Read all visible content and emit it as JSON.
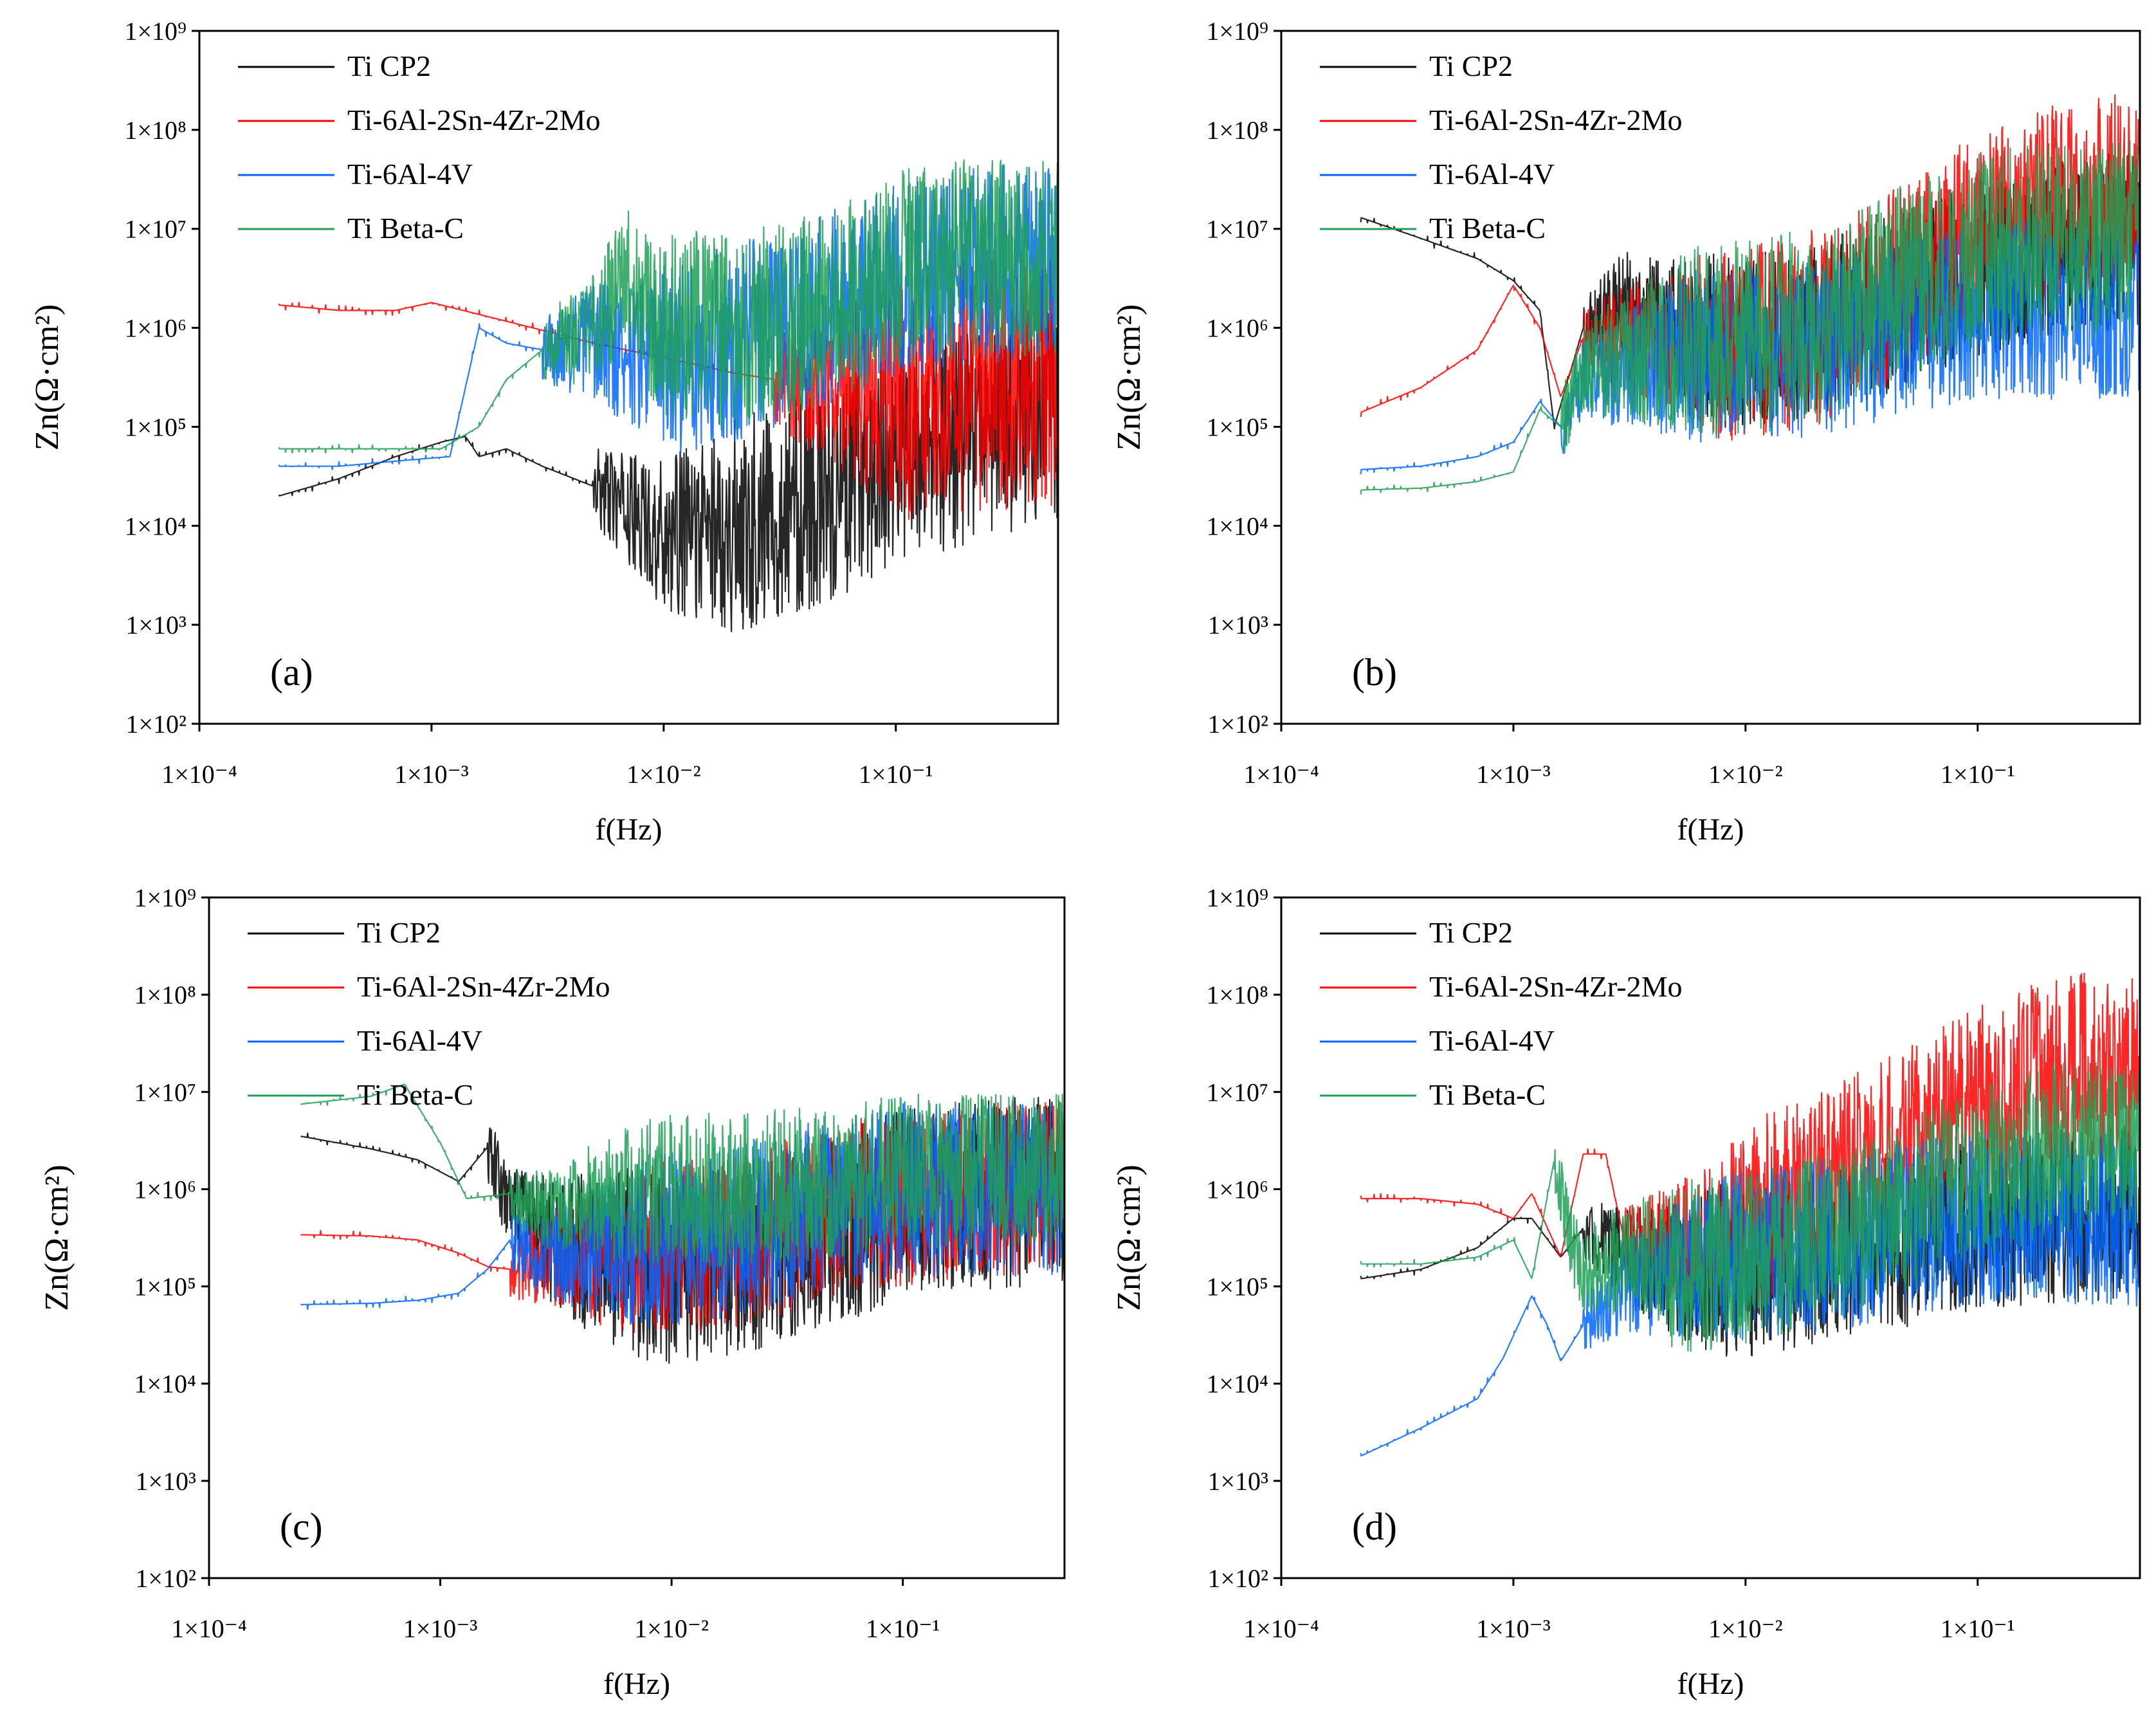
{
  "figure": {
    "description": "Electrochemical noise impedance spectra (Zn vs frequency), four panels",
    "series_colors": {
      "Ti CP2": "#000000",
      "Ti-6Al-2Sn-4Zr-2Mo": "#ff0000",
      "Ti-6Al-4V": "#0066ff",
      "Ti Beta-C": "#1fa056"
    }
  },
  "chart_data": [
    {
      "type": "line",
      "panel": "(a)",
      "title": "",
      "xlabel": "f(Hz)",
      "ylabel": "Zn(Ω·cm²)",
      "xscale": "log",
      "yscale": "log",
      "xlim": [
        0.0001,
        0.5
      ],
      "ylim": [
        100,
        1000000000
      ],
      "x_tick_labels": [
        "1×10⁻⁴",
        "1×10⁻³",
        "1×10⁻²",
        "1×10⁻¹"
      ],
      "y_tick_labels": [
        "1×10²",
        "1×10³",
        "1×10⁴",
        "1×10⁵",
        "1×10⁶",
        "1×10⁷",
        "1×10⁸",
        "1×10⁹"
      ],
      "legend": [
        "Ti CP2",
        "Ti-6Al-2Sn-4Zr-2Mo",
        "Ti-6Al-4V",
        "Ti Beta-C"
      ],
      "legend_position": "top-left",
      "series": [
        {
          "name": "Ti CP2",
          "color": "#000000",
          "x": [
            0.00022,
            0.0004,
            0.0007,
            0.0011,
            0.0014,
            0.0016,
            0.0021,
            0.003,
            0.005,
            0.007,
            0.01,
            0.02,
            0.05,
            0.1,
            0.2,
            0.5
          ],
          "y": [
            20000,
            30000,
            50000,
            70000,
            80000,
            50000,
            60000,
            40000,
            25000,
            15000,
            8000,
            10000,
            20000,
            50000,
            80000,
            150000
          ],
          "noise_start": 0.005,
          "noise_amp": 1.1
        },
        {
          "name": "Ti-6Al-2Sn-4Zr-2Mo",
          "color": "#ff0000",
          "x": [
            0.00022,
            0.0004,
            0.0007,
            0.001,
            0.002,
            0.005,
            0.01,
            0.02,
            0.05,
            0.1,
            0.2,
            0.5
          ],
          "y": [
            1700000,
            1500000,
            1500000,
            1800000,
            1200000,
            700000,
            500000,
            350000,
            250000,
            200000,
            250000,
            300000
          ],
          "noise_start": 0.03,
          "noise_amp": 1.3
        },
        {
          "name": "Ti-6Al-4V",
          "color": "#0066ff",
          "x": [
            0.00022,
            0.0004,
            0.0007,
            0.0012,
            0.0016,
            0.0021,
            0.003,
            0.005,
            0.01,
            0.02,
            0.05,
            0.1,
            0.2,
            0.5
          ],
          "y": [
            40000,
            40000,
            45000,
            50000,
            1000000,
            700000,
            600000,
            700000,
            500000,
            700000,
            1500000,
            3000000,
            4000000,
            5000000
          ],
          "noise_start": 0.003,
          "noise_amp": 1.0
        },
        {
          "name": "Ti Beta-C",
          "color": "#1fa056",
          "x": [
            0.00022,
            0.0004,
            0.0007,
            0.0011,
            0.0016,
            0.0021,
            0.003,
            0.005,
            0.007,
            0.01,
            0.02,
            0.05,
            0.1,
            0.2,
            0.5
          ],
          "y": [
            60000,
            60000,
            60000,
            60000,
            100000,
            300000,
            600000,
            1000000,
            3000000,
            1000000,
            900000,
            1500000,
            4000000,
            5000000,
            5000000
          ],
          "noise_start": 0.003,
          "noise_amp": 1.0
        }
      ]
    },
    {
      "type": "line",
      "panel": "(b)",
      "title": "",
      "xlabel": "f(Hz)",
      "ylabel": "Zn(Ω·cm²)",
      "xscale": "log",
      "yscale": "log",
      "xlim": [
        0.0001,
        0.5
      ],
      "ylim": [
        100,
        1000000000
      ],
      "x_tick_labels": [
        "1×10⁻⁴",
        "1×10⁻³",
        "1×10⁻²",
        "1×10⁻¹"
      ],
      "y_tick_labels": [
        "1×10²",
        "1×10³",
        "1×10⁴",
        "1×10⁵",
        "1×10⁶",
        "1×10⁷",
        "1×10⁸",
        "1×10⁹"
      ],
      "legend": [
        "Ti CP2",
        "Ti-6Al-2Sn-4Zr-2Mo",
        "Ti-6Al-4V",
        "Ti Beta-C"
      ],
      "legend_position": "top-left",
      "series": [
        {
          "name": "Ti CP2",
          "color": "#000000",
          "x": [
            0.00022,
            0.0004,
            0.0007,
            0.001,
            0.0013,
            0.0015,
            0.002,
            0.003,
            0.005,
            0.01,
            0.02,
            0.05,
            0.1,
            0.2,
            0.5
          ],
          "y": [
            13000000,
            8000000,
            5000000,
            3000000,
            1500000,
            100000,
            1000000,
            2000000,
            1000000,
            700000,
            1000000,
            2000000,
            4000000,
            6000000,
            8000000
          ],
          "noise_start": 0.002,
          "noise_amp": 0.9
        },
        {
          "name": "Ti-6Al-2Sn-4Zr-2Mo",
          "color": "#ff0000",
          "x": [
            0.00022,
            0.0004,
            0.0007,
            0.001,
            0.0013,
            0.0016,
            0.002,
            0.005,
            0.01,
            0.02,
            0.05,
            0.1,
            0.2,
            0.5
          ],
          "y": [
            140000,
            250000,
            600000,
            2700000,
            1000000,
            200000,
            800000,
            700000,
            700000,
            1000000,
            3000000,
            10000000,
            20000000,
            30000000
          ],
          "noise_start": 0.002,
          "noise_amp": 1.0
        },
        {
          "name": "Ti-6Al-4V",
          "color": "#0066ff",
          "x": [
            0.00022,
            0.0004,
            0.0007,
            0.001,
            0.0013,
            0.0016,
            0.002,
            0.005,
            0.01,
            0.02,
            0.05,
            0.1,
            0.2,
            0.5
          ],
          "y": [
            37000,
            40000,
            50000,
            70000,
            180000,
            100000,
            300000,
            500000,
            500000,
            600000,
            1000000,
            1500000,
            1500000,
            1500000
          ],
          "noise_start": 0.0016,
          "noise_amp": 0.9
        },
        {
          "name": "Ti Beta-C",
          "color": "#1fa056",
          "x": [
            0.00022,
            0.0004,
            0.0007,
            0.001,
            0.0013,
            0.0016,
            0.002,
            0.005,
            0.01,
            0.02,
            0.05,
            0.1,
            0.2,
            0.5
          ],
          "y": [
            23000,
            24000,
            28000,
            35000,
            150000,
            100000,
            400000,
            700000,
            800000,
            1000000,
            3000000,
            6000000,
            8000000,
            8000000
          ],
          "noise_start": 0.0016,
          "noise_amp": 1.0
        }
      ]
    },
    {
      "type": "line",
      "panel": "(c)",
      "title": "",
      "xlabel": "f(Hz)",
      "ylabel": "Zn(Ω·cm²)",
      "xscale": "log",
      "yscale": "log",
      "xlim": [
        0.0001,
        0.5
      ],
      "ylim": [
        100,
        1000000000
      ],
      "x_tick_labels": [
        "1×10⁻⁴",
        "1×10⁻³",
        "1×10⁻²",
        "1×10⁻¹"
      ],
      "y_tick_labels": [
        "1×10²",
        "1×10³",
        "1×10⁴",
        "1×10⁵",
        "1×10⁶",
        "1×10⁷",
        "1×10⁸",
        "1×10⁹"
      ],
      "legend": [
        "Ti CP2",
        "Ti-6Al-2Sn-4Zr-2Mo",
        "Ti-6Al-4V",
        "Ti Beta-C"
      ],
      "legend_position": "top-left",
      "series": [
        {
          "name": "Ti CP2",
          "color": "#000000",
          "x": [
            0.00025,
            0.0005,
            0.0008,
            0.0012,
            0.0016,
            0.002,
            0.003,
            0.005,
            0.01,
            0.02,
            0.05,
            0.1,
            0.2,
            0.5
          ],
          "y": [
            3500000,
            2600000,
            2000000,
            1200000,
            2700000,
            600000,
            300000,
            200000,
            150000,
            200000,
            400000,
            700000,
            900000,
            1000000
          ],
          "noise_start": 0.0016,
          "noise_amp": 1.0
        },
        {
          "name": "Ti-6Al-2Sn-4Zr-2Mo",
          "color": "#ff0000",
          "x": [
            0.00025,
            0.0005,
            0.0008,
            0.0012,
            0.0016,
            0.002,
            0.003,
            0.005,
            0.01,
            0.02,
            0.05,
            0.1,
            0.2,
            0.5
          ],
          "y": [
            340000,
            330000,
            300000,
            220000,
            160000,
            150000,
            200000,
            200000,
            250000,
            300000,
            600000,
            800000,
            1000000,
            1000000
          ],
          "noise_start": 0.002,
          "noise_amp": 0.9
        },
        {
          "name": "Ti-6Al-4V",
          "color": "#0066ff",
          "x": [
            0.00025,
            0.0005,
            0.0008,
            0.0012,
            0.0016,
            0.002,
            0.003,
            0.005,
            0.01,
            0.02,
            0.05,
            0.1,
            0.2,
            0.5
          ],
          "y": [
            65000,
            67000,
            72000,
            85000,
            150000,
            300000,
            200000,
            250000,
            300000,
            400000,
            700000,
            1000000,
            1000000,
            1000000
          ],
          "noise_start": 0.002,
          "noise_amp": 0.9
        },
        {
          "name": "Ti Beta-C",
          "color": "#1fa056",
          "x": [
            0.00025,
            0.0005,
            0.0007,
            0.001,
            0.0013,
            0.002,
            0.003,
            0.005,
            0.01,
            0.02,
            0.05,
            0.1,
            0.2,
            0.5
          ],
          "y": [
            7500000,
            9000000,
            12000000,
            3000000,
            800000,
            900000,
            600000,
            800000,
            1000000,
            1000000,
            1200000,
            1500000,
            1500000,
            1500000
          ],
          "noise_start": 0.002,
          "noise_amp": 0.8
        }
      ]
    },
    {
      "type": "line",
      "panel": "(d)",
      "title": "",
      "xlabel": "f(Hz)",
      "ylabel": "Zn(Ω·cm²)",
      "xscale": "log",
      "yscale": "log",
      "xlim": [
        0.0001,
        0.5
      ],
      "ylim": [
        100,
        1000000000
      ],
      "x_tick_labels": [
        "1×10⁻⁴",
        "1×10⁻³",
        "1×10⁻²",
        "1×10⁻¹"
      ],
      "y_tick_labels": [
        "1×10²",
        "1×10³",
        "1×10⁴",
        "1×10⁵",
        "1×10⁶",
        "1×10⁷",
        "1×10⁸",
        "1×10⁹"
      ],
      "legend": [
        "Ti CP2",
        "Ti-6Al-2Sn-4Zr-2Mo",
        "Ti-6Al-4V",
        "Ti Beta-C"
      ],
      "legend_position": "top-left",
      "series": [
        {
          "name": "Ti CP2",
          "color": "#000000",
          "x": [
            0.00022,
            0.0004,
            0.0007,
            0.001,
            0.0012,
            0.0016,
            0.002,
            0.003,
            0.005,
            0.01,
            0.02,
            0.05,
            0.1,
            0.2,
            0.5
          ],
          "y": [
            120000,
            150000,
            250000,
            500000,
            500000,
            200000,
            400000,
            200000,
            150000,
            150000,
            200000,
            300000,
            400000,
            500000,
            600000
          ],
          "noise_start": 0.002,
          "noise_amp": 0.9
        },
        {
          "name": "Ti-6Al-2Sn-4Zr-2Mo",
          "color": "#ff0000",
          "x": [
            0.00022,
            0.0004,
            0.0007,
            0.001,
            0.0012,
            0.0016,
            0.002,
            0.0025,
            0.003,
            0.005,
            0.01,
            0.02,
            0.05,
            0.1,
            0.2,
            0.5
          ],
          "y": [
            800000,
            800000,
            700000,
            500000,
            900000,
            200000,
            2300000,
            2300000,
            300000,
            300000,
            500000,
            1000000,
            3000000,
            8000000,
            15000000,
            20000000
          ],
          "noise_start": 0.003,
          "noise_amp": 1.0
        },
        {
          "name": "Ti-6Al-4V",
          "color": "#0066ff",
          "x": [
            0.00022,
            0.0004,
            0.0007,
            0.0009,
            0.0012,
            0.0014,
            0.0016,
            0.002,
            0.003,
            0.005,
            0.01,
            0.02,
            0.05,
            0.1,
            0.2,
            0.5
          ],
          "y": [
            1800,
            3500,
            7000,
            18000,
            80000,
            40000,
            17000,
            40000,
            100000,
            150000,
            200000,
            250000,
            400000,
            500000,
            500000,
            500000
          ],
          "noise_start": 0.002,
          "noise_amp": 0.9
        },
        {
          "name": "Ti Beta-C",
          "color": "#1fa056",
          "x": [
            0.00022,
            0.0004,
            0.0007,
            0.001,
            0.0012,
            0.0015,
            0.0018,
            0.002,
            0.003,
            0.005,
            0.01,
            0.02,
            0.05,
            0.1,
            0.2,
            0.5
          ],
          "y": [
            170000,
            170000,
            200000,
            300000,
            120000,
            2000000,
            250000,
            150000,
            200000,
            150000,
            200000,
            300000,
            700000,
            1500000,
            2500000,
            3000000
          ],
          "noise_start": 0.0015,
          "noise_amp": 0.9
        }
      ]
    }
  ]
}
